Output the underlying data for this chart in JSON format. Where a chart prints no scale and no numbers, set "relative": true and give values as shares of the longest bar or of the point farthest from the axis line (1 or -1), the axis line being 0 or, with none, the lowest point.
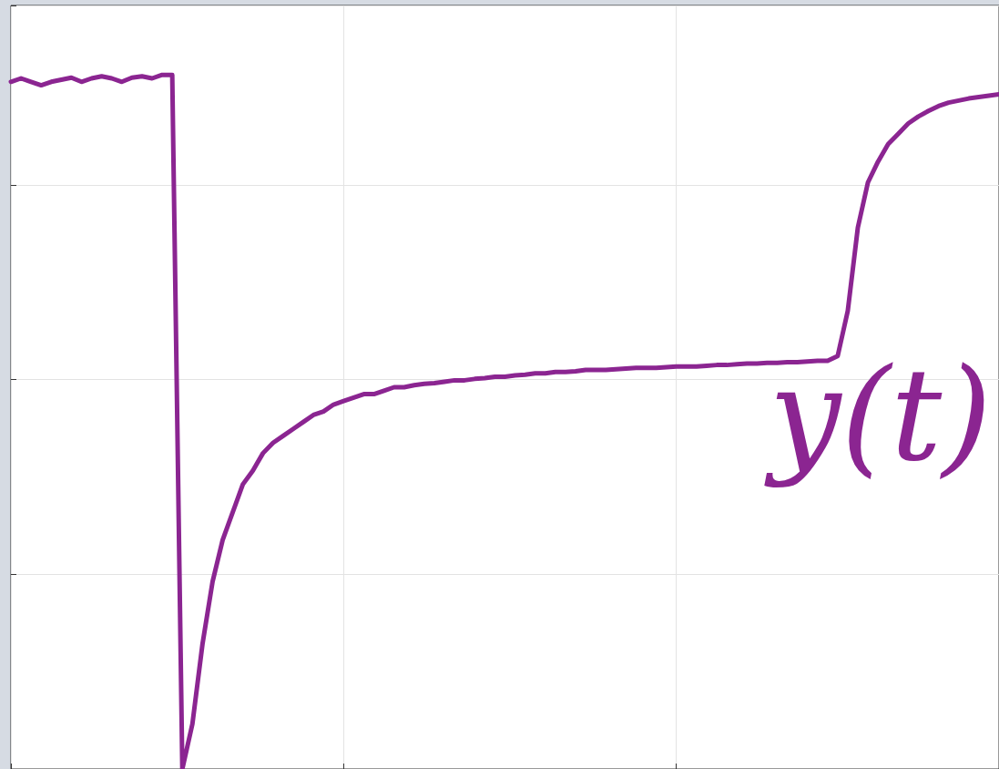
{
  "chart_data": {
    "type": "line",
    "relative": true,
    "grid": true,
    "categories": [
      null,
      null,
      null,
      null,
      null,
      null,
      null,
      null,
      null,
      null,
      null,
      null,
      null,
      null,
      null,
      null,
      null,
      null,
      null,
      null,
      null,
      null,
      null,
      null,
      null,
      null,
      null,
      null,
      null,
      null,
      null,
      null,
      null,
      null,
      null,
      null,
      null,
      null,
      null,
      null,
      null,
      null,
      null,
      null,
      null,
      null,
      null,
      null,
      null,
      null,
      null,
      null,
      null,
      null,
      null,
      null,
      null,
      null,
      null,
      null,
      null,
      null,
      null,
      null,
      null,
      null,
      null,
      null,
      null,
      null,
      null,
      null,
      null,
      null,
      null,
      null,
      null,
      null,
      null,
      null,
      null,
      null,
      null,
      null,
      null,
      null,
      null,
      null,
      null,
      null,
      null,
      null,
      null,
      null,
      null,
      null,
      null,
      null,
      null
    ],
    "series": [
      {
        "color": "#8b2591",
        "values": [
          0.99,
          0.995,
          0.99,
          0.985,
          0.99,
          0.993,
          0.996,
          0.99,
          0.995,
          0.998,
          0.995,
          0.99,
          0.996,
          0.998,
          0.995,
          1.0,
          1.0,
          0.0,
          0.065,
          0.18,
          0.27,
          0.33,
          0.37,
          0.41,
          0.43,
          0.455,
          0.47,
          0.48,
          0.49,
          0.5,
          0.51,
          0.515,
          0.525,
          0.53,
          0.535,
          0.54,
          0.54,
          0.545,
          0.55,
          0.55,
          0.553,
          0.555,
          0.556,
          0.558,
          0.56,
          0.56,
          0.562,
          0.563,
          0.565,
          0.565,
          0.567,
          0.568,
          0.57,
          0.57,
          0.572,
          0.572,
          0.573,
          0.575,
          0.575,
          0.575,
          0.576,
          0.577,
          0.578,
          0.578,
          0.578,
          0.579,
          0.58,
          0.58,
          0.58,
          0.581,
          0.582,
          0.582,
          0.583,
          0.584,
          0.584,
          0.585,
          0.585,
          0.586,
          0.586,
          0.587,
          0.588,
          0.588,
          0.595,
          0.66,
          0.78,
          0.845,
          0.875,
          0.9,
          0.915,
          0.93,
          0.94,
          0.948,
          0.955,
          0.96,
          0.963,
          0.966,
          0.968,
          0.97,
          0.972
        ]
      }
    ],
    "annotations": [
      "y(t)"
    ],
    "marker": "none",
    "line_style": "solid"
  }
}
